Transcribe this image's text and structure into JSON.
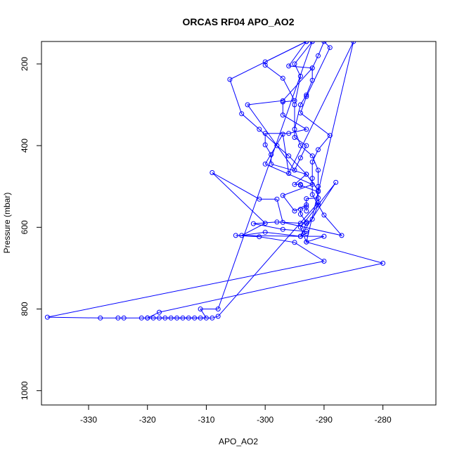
{
  "chart_data": {
    "type": "line",
    "title": "ORCAS RF04 APO_AO2",
    "xlabel": "APO_AO2",
    "ylabel": "Pressure (mbar)",
    "xlim": [
      -338,
      -271
    ],
    "ylim": [
      1035,
      145
    ],
    "y_reversed": true,
    "x_ticks": [
      -330,
      -320,
      -310,
      -300,
      -290,
      -280
    ],
    "y_ticks": [
      200,
      400,
      600,
      800,
      1000
    ],
    "grid": false,
    "legend": "none",
    "markers": "open circles",
    "color": "#0000ff",
    "series": [
      {
        "values": [
          [
            -293,
            145
          ],
          [
            -300,
            195
          ],
          [
            -300,
            203
          ],
          [
            -297,
            235
          ],
          [
            -295,
            290
          ],
          [
            -297,
            293
          ],
          [
            -297,
            325
          ],
          [
            -293,
            360
          ],
          [
            -296,
            370
          ],
          [
            -300,
            370
          ],
          [
            -300,
            398
          ],
          [
            -299,
            422
          ],
          [
            -299,
            445
          ],
          [
            -293,
            470
          ],
          [
            -295,
            495
          ],
          [
            -294,
            495
          ],
          [
            -294,
            497
          ],
          [
            -291,
            513
          ],
          [
            -291,
            528
          ],
          [
            -293,
            530
          ],
          [
            -293,
            550
          ],
          [
            -294,
            556
          ],
          [
            -294,
            568
          ],
          [
            -293,
            587
          ],
          [
            -294,
            590
          ],
          [
            -298,
            587
          ],
          [
            -302,
            591
          ],
          [
            -297,
            605
          ],
          [
            -293,
            610
          ],
          [
            -293,
            615
          ],
          [
            -294,
            622
          ],
          [
            -305,
            620
          ],
          [
            -301,
            623
          ],
          [
            -295,
            637
          ],
          [
            -290,
            683
          ],
          [
            -337,
            820
          ],
          [
            -328,
            822
          ],
          [
            -325,
            822
          ],
          [
            -324,
            822
          ],
          [
            -321,
            822
          ],
          [
            -320,
            822
          ],
          [
            -319,
            822
          ],
          [
            -318,
            822
          ],
          [
            -317,
            822
          ],
          [
            -316,
            822
          ],
          [
            -315,
            822
          ],
          [
            -314,
            822
          ],
          [
            -313,
            822
          ],
          [
            -312,
            822
          ],
          [
            -311,
            822
          ],
          [
            -310,
            822
          ],
          [
            -311,
            800
          ],
          [
            -308,
            800
          ],
          [
            -292,
            145
          ]
        ]
      },
      {
        "values": [
          [
            -293,
            145
          ],
          [
            -306,
            238
          ],
          [
            -304,
            322
          ],
          [
            -301,
            360
          ],
          [
            -298,
            400
          ],
          [
            -296,
            425
          ],
          [
            -293,
            470
          ],
          [
            -291,
            510
          ],
          [
            -291,
            545
          ],
          [
            -292,
            580
          ],
          [
            -293,
            590
          ],
          [
            -294,
            622
          ],
          [
            -290,
            622
          ],
          [
            -293,
            636
          ],
          [
            -280,
            688
          ],
          [
            -318,
            808
          ],
          [
            -320,
            822
          ],
          [
            -309,
            822
          ],
          [
            -308,
            818
          ],
          [
            -291,
            540
          ],
          [
            -291,
            500
          ],
          [
            -291,
            460
          ],
          [
            -292,
            425
          ],
          [
            -294,
            400
          ],
          [
            -295,
            360
          ],
          [
            -294,
            300
          ],
          [
            -293,
            276
          ],
          [
            -292,
            240
          ],
          [
            -292,
            210
          ],
          [
            -296,
            205
          ],
          [
            -293,
            145
          ]
        ]
      },
      {
        "values": [
          [
            -292,
            145
          ],
          [
            -295,
            200
          ],
          [
            -294,
            230
          ],
          [
            -295,
            300
          ],
          [
            -295,
            380
          ],
          [
            -293,
            400
          ],
          [
            -294,
            430
          ],
          [
            -295,
            460
          ],
          [
            -303,
            300
          ],
          [
            -297,
            290
          ],
          [
            -292,
            210
          ],
          [
            -291,
            180
          ],
          [
            -290,
            145
          ],
          [
            -289,
            160
          ],
          [
            -293,
            280
          ],
          [
            -294,
            320
          ],
          [
            -289,
            375
          ],
          [
            -291,
            410
          ],
          [
            -292,
            440
          ],
          [
            -292,
            480
          ],
          [
            -292,
            520
          ],
          [
            -290,
            570
          ],
          [
            -287,
            620
          ],
          [
            -297,
            588
          ],
          [
            -298,
            531
          ],
          [
            -301,
            531
          ],
          [
            -309,
            466
          ],
          [
            -300,
            590
          ],
          [
            -304,
            620
          ],
          [
            -300,
            612
          ],
          [
            -294,
            622
          ],
          [
            -288,
            490
          ],
          [
            -294,
            600
          ],
          [
            -293,
            636
          ],
          [
            -285,
            145
          ],
          [
            -296,
            468
          ],
          [
            -297,
            372
          ],
          [
            -300,
            445
          ],
          [
            -292,
            495
          ],
          [
            -297,
            522
          ],
          [
            -295,
            560
          ],
          [
            -293,
            545
          ],
          [
            -293,
            560
          ]
        ]
      }
    ]
  }
}
